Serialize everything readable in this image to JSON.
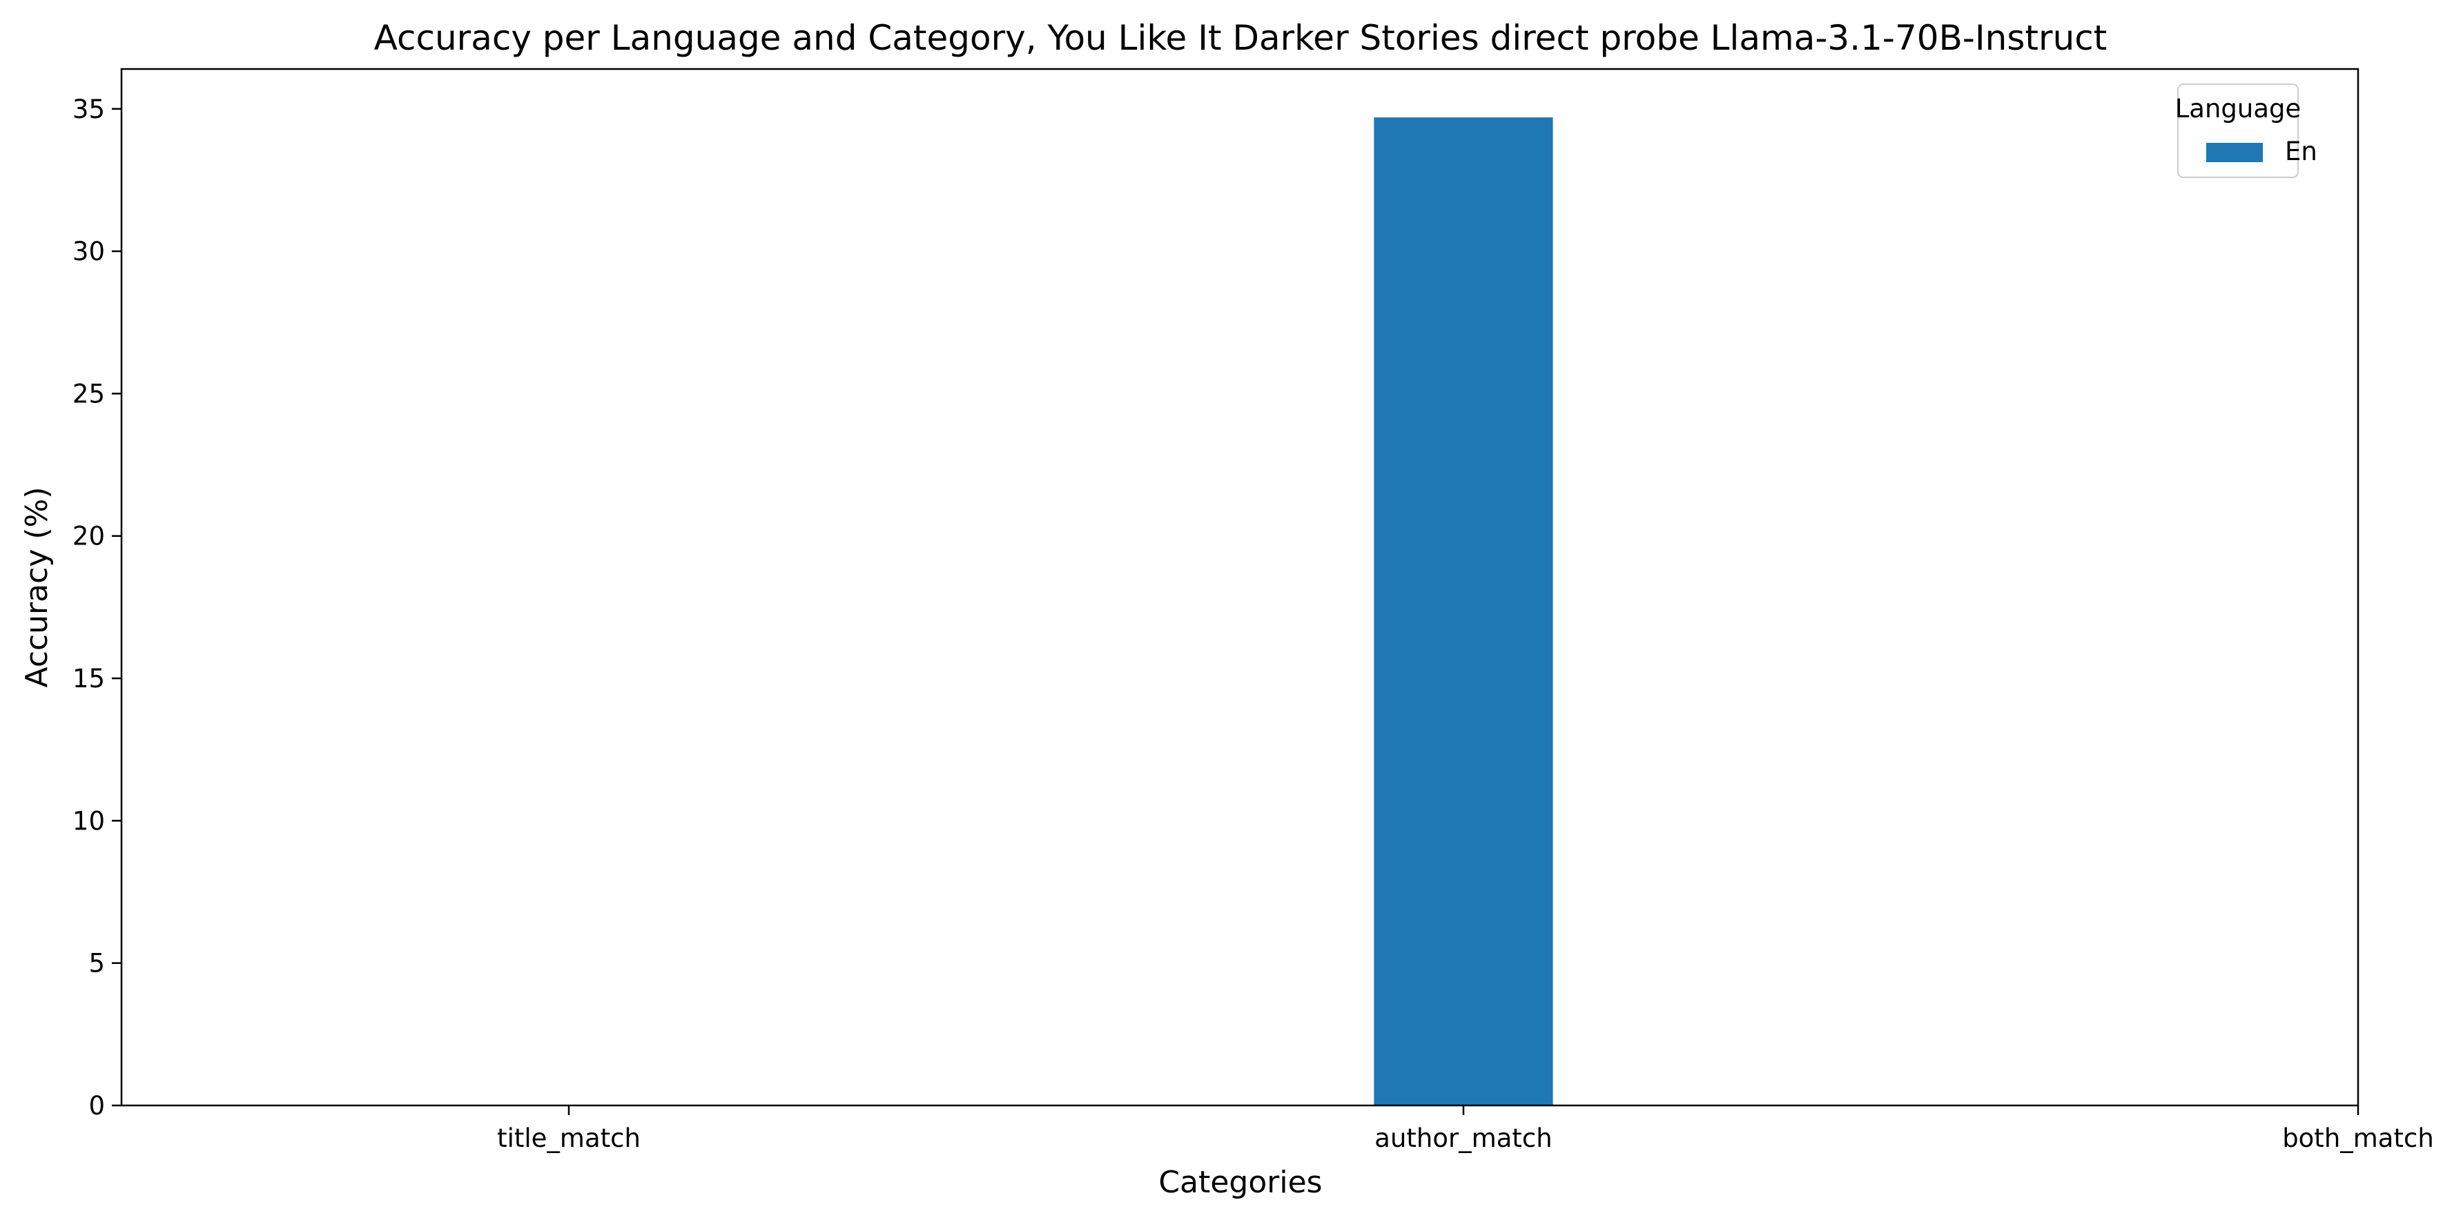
{
  "chart_data": {
    "type": "bar",
    "title": "Accuracy per Language and Category, You Like It Darker Stories direct probe Llama-3.1-70B-Instruct",
    "xlabel": "Categories",
    "ylabel": "Accuracy (%)",
    "categories": [
      "title_match",
      "author_match",
      "both_match"
    ],
    "series": [
      {
        "name": "En",
        "color": "#1f77b4",
        "values": [
          0,
          34.7,
          0
        ]
      }
    ],
    "ylim": [
      0,
      36.4
    ],
    "yticks": [
      "0",
      "5",
      "10",
      "15",
      "20",
      "25",
      "30",
      "35"
    ],
    "grid": false,
    "legend": {
      "title": "Language",
      "placement": "top-right"
    }
  }
}
